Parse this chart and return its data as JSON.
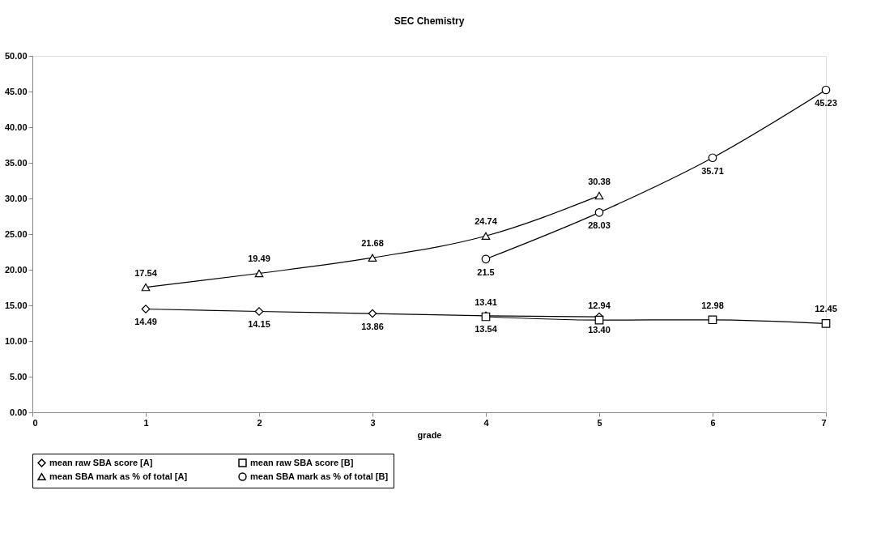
{
  "chart_data": {
    "type": "line",
    "title": "SEC Chemistry",
    "xlabel": "grade",
    "xlim": [
      0,
      7
    ],
    "xticks": [
      0,
      1,
      2,
      3,
      4,
      5,
      6,
      7
    ],
    "ylim": [
      0,
      50
    ],
    "yticks": [
      {
        "value": 0,
        "label": "0.00"
      },
      {
        "value": 5,
        "label": "5.00"
      },
      {
        "value": 10,
        "label": "10.00"
      },
      {
        "value": 15,
        "label": "15.00"
      },
      {
        "value": 20,
        "label": "20.00"
      },
      {
        "value": 25,
        "label": "25.00"
      },
      {
        "value": 30,
        "label": "30.00"
      },
      {
        "value": 35,
        "label": "35.00"
      },
      {
        "value": 40,
        "label": "40.00"
      },
      {
        "value": 45,
        "label": "45.00"
      },
      {
        "value": 50,
        "label": "50.00"
      }
    ],
    "grid": false,
    "legend": "bottom",
    "line_style": "solid",
    "series": [
      {
        "name": "mean raw SBA score [A]",
        "color": "#000000",
        "marker": "diamond",
        "x": [
          1,
          2,
          3,
          4,
          5
        ],
        "values": [
          14.49,
          14.15,
          13.86,
          13.54,
          13.4
        ],
        "value_labels": [
          "14.49",
          "14.15",
          "13.86",
          "13.54",
          "13.40"
        ]
      },
      {
        "name": "mean raw SBA score [B]",
        "color": "#000000",
        "marker": "square",
        "x": [
          4,
          5,
          6,
          7
        ],
        "values": [
          13.41,
          12.94,
          12.98,
          12.45
        ],
        "value_labels": [
          "13.41",
          "12.94",
          "12.98",
          "12.45"
        ]
      },
      {
        "name": "mean SBA mark as % of total [A]",
        "color": "#000000",
        "marker": "triangle",
        "x": [
          1,
          2,
          3,
          4,
          5
        ],
        "values": [
          17.54,
          19.49,
          21.68,
          24.74,
          30.38
        ],
        "value_labels": [
          "17.54",
          "19.49",
          "21.68",
          "24.74",
          "30.38"
        ]
      },
      {
        "name": "mean SBA mark as % of total [B]",
        "color": "#000000",
        "marker": "circle",
        "x": [
          4,
          5,
          6,
          7
        ],
        "values": [
          21.5,
          28.03,
          35.71,
          45.23
        ],
        "value_labels": [
          "21.5",
          "28.03",
          "35.71",
          "45.23"
        ]
      }
    ]
  }
}
